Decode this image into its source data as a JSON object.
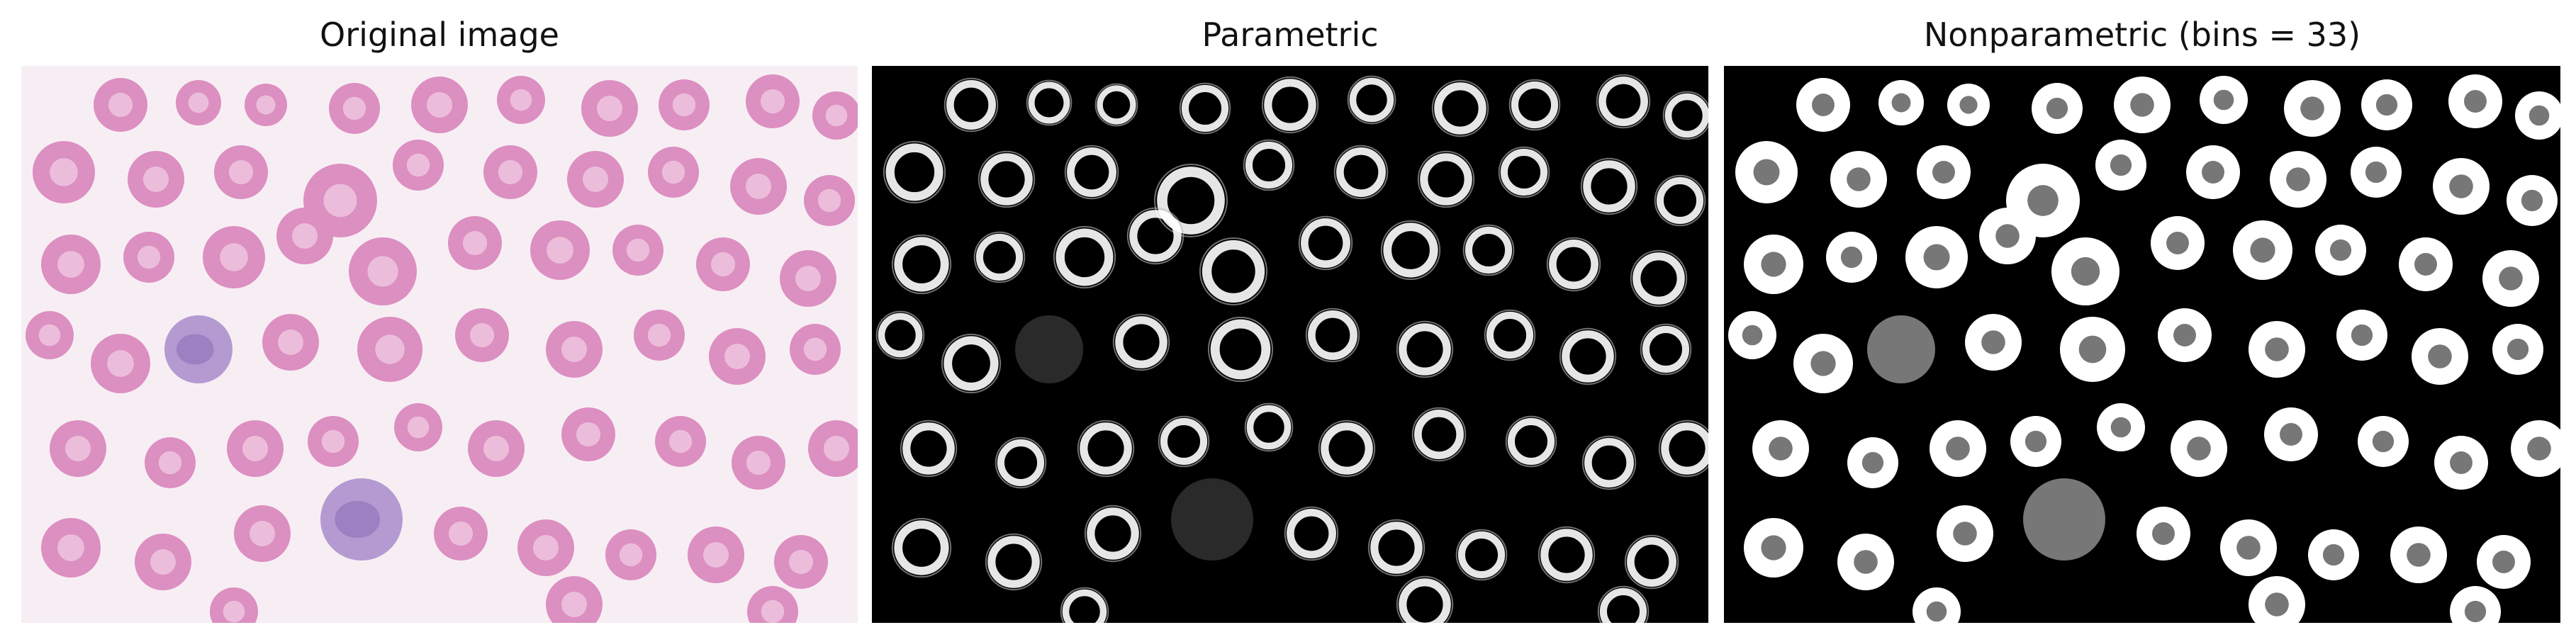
{
  "figure": {
    "panels": [
      {
        "title": "Original image",
        "content": "blood smear micrograph: pink red blood cells and purple-stained white blood cells on a pale background"
      },
      {
        "title": "Parametric",
        "content": "segmentation map: cell outlines rendered white on black"
      },
      {
        "title": "Nonparametric (bins = 33)",
        "content": "segmentation map: white cells with gray centers on black"
      }
    ],
    "colors": {
      "background": "#ffffff",
      "title_text": "#111111",
      "rbc_fill": "#dc8fc1",
      "rbc_center": "#f0c8e0",
      "wbc_fill": "#b59ad1",
      "wbc_nucleus": "#8e6fb8",
      "smear_background": "#f7eef4",
      "seg_background": "#000000",
      "seg_cell": "#ffffff",
      "seg_center": "#777777"
    }
  }
}
